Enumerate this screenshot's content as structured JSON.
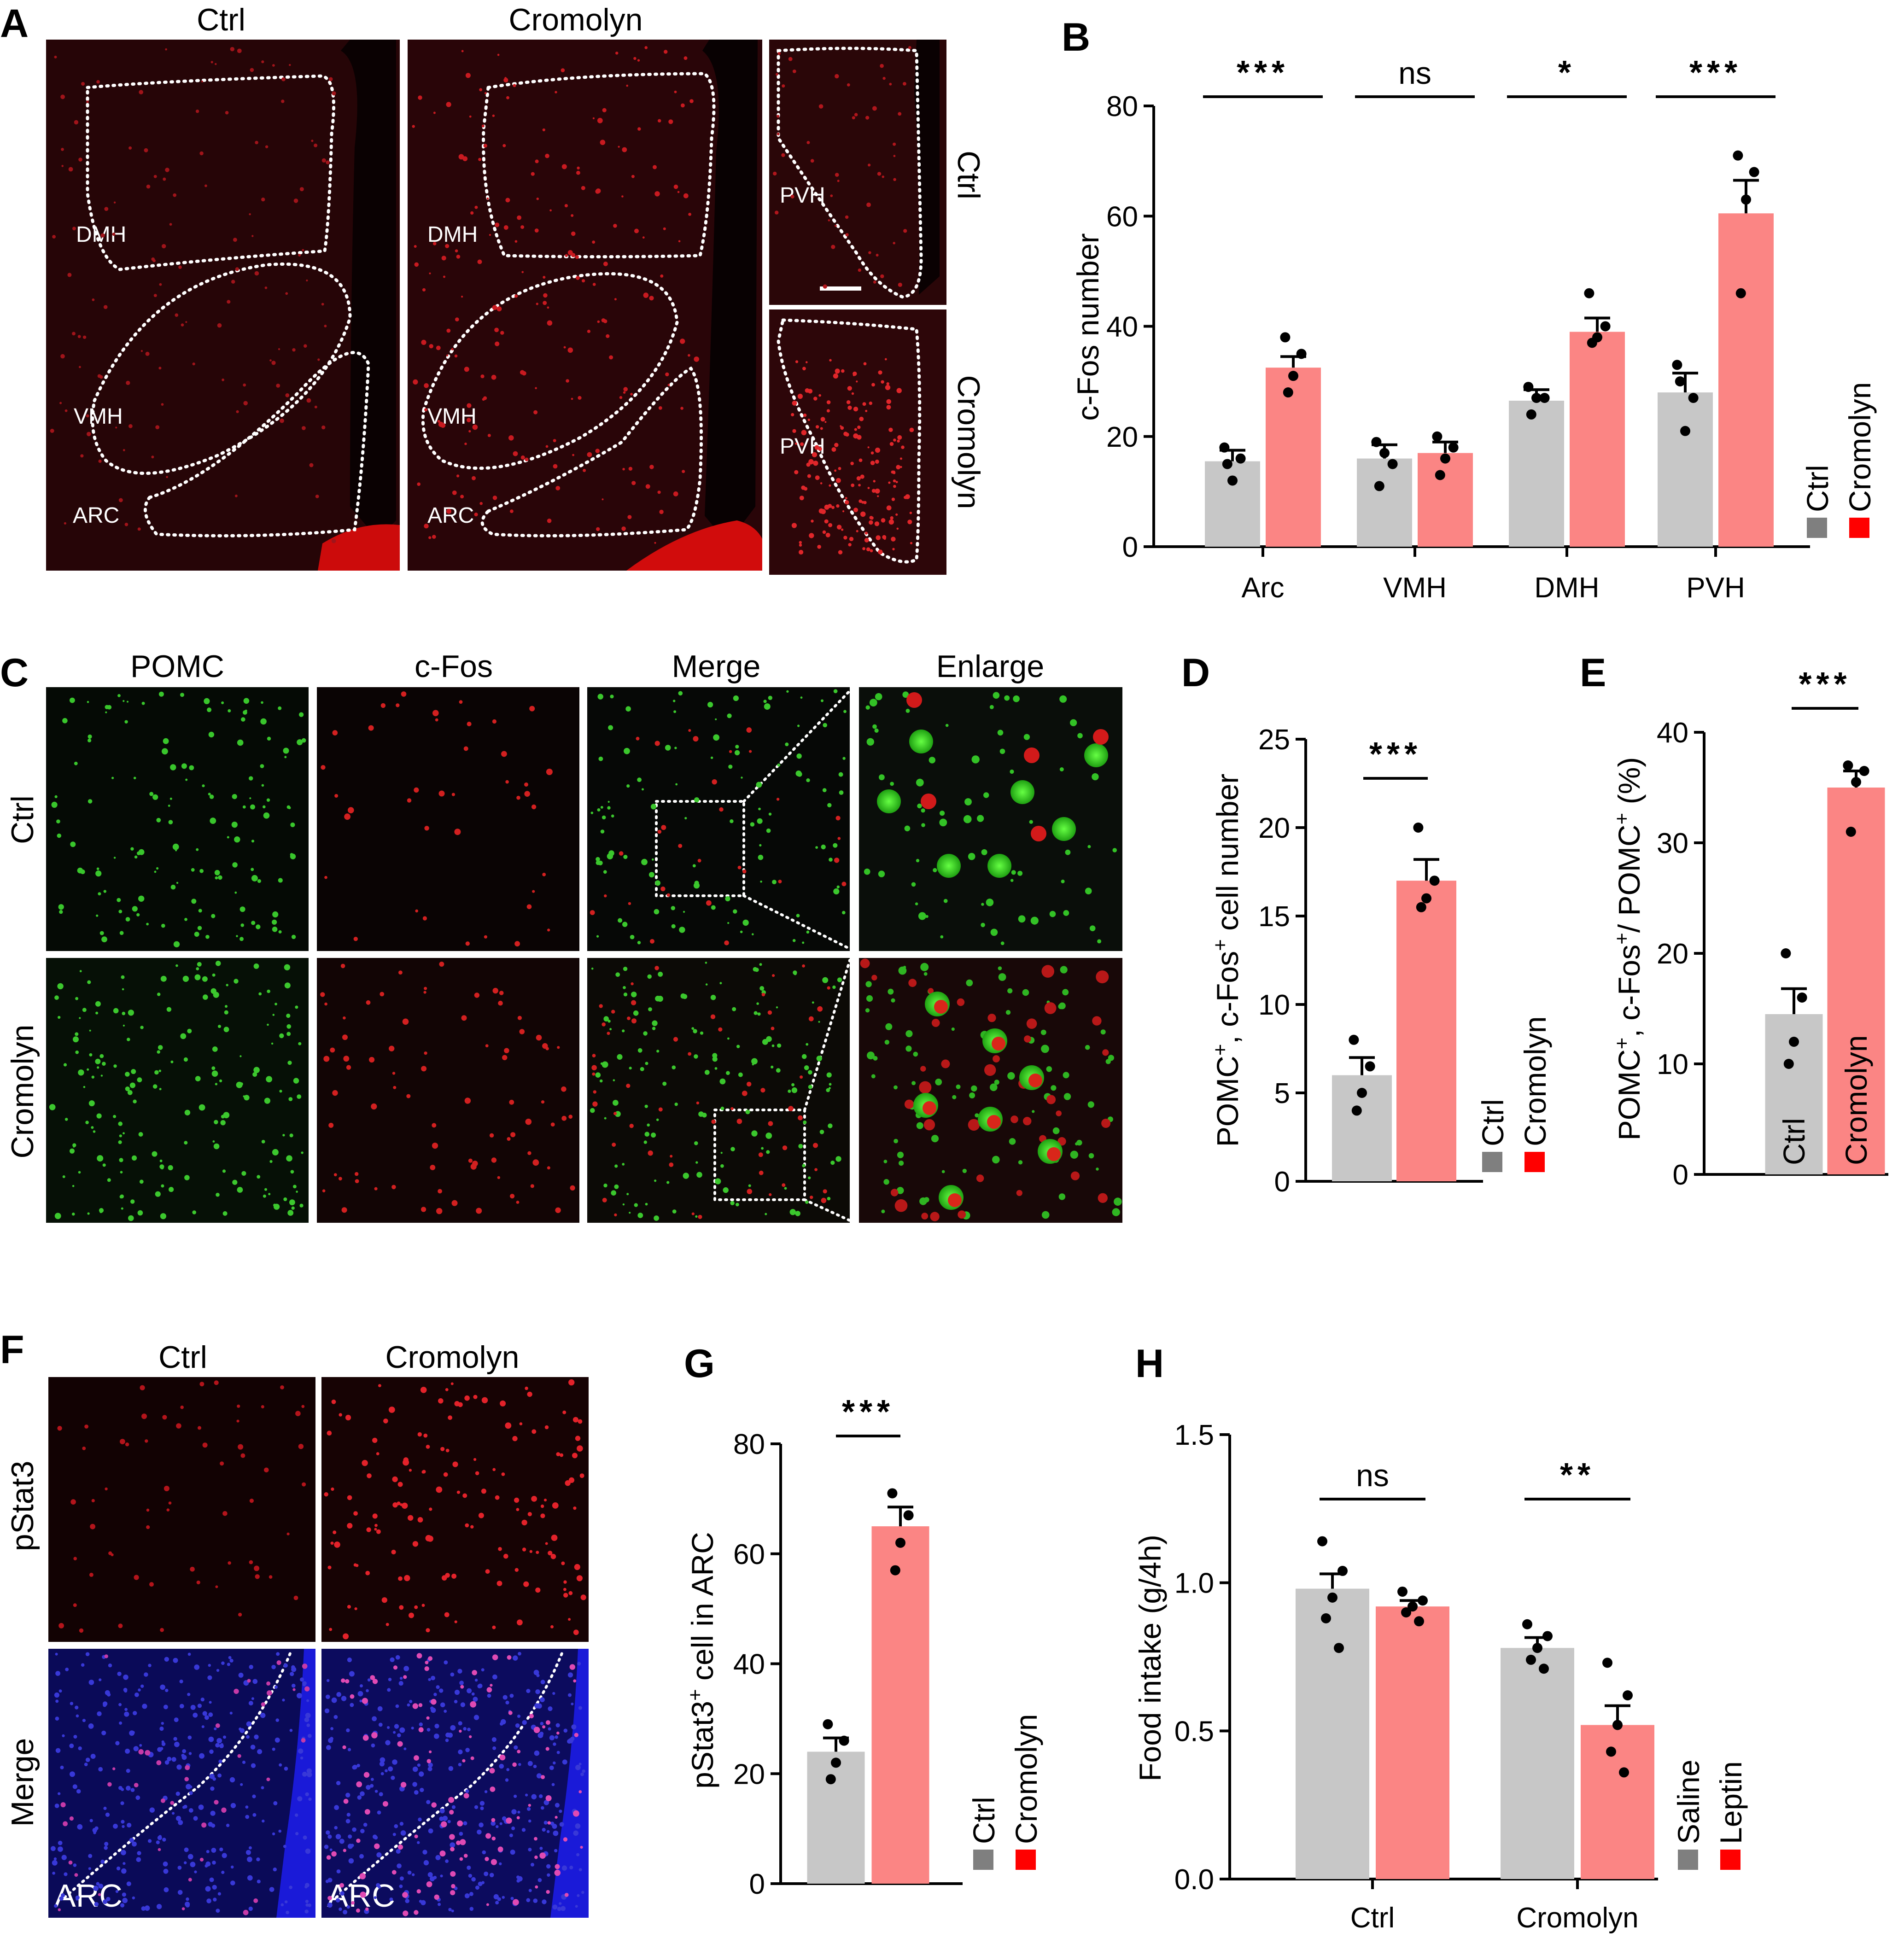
{
  "colors": {
    "control": "#c7c7c7",
    "treatment": "#fb8584",
    "legend_control": "#7f7f7f",
    "legend_treatment": "#ff0000"
  },
  "panelA": {
    "letter": "A",
    "col_ctrl": "Ctrl",
    "col_cromolyn": "Cromolyn",
    "row_ctrl": "Ctrl",
    "row_cromolyn": "Cromolyn",
    "regions": {
      "dmh": "DMH",
      "vmh": "VMH",
      "arc": "ARC",
      "pvh": "PVH"
    }
  },
  "panelC": {
    "letter": "C",
    "columns": [
      "POMC",
      "c-Fos",
      "Merge",
      "Enlarge"
    ],
    "rows": [
      "Ctrl",
      "Cromolyn"
    ]
  },
  "panelF": {
    "letter": "F",
    "columns": [
      "Ctrl",
      "Cromolyn"
    ],
    "rows": [
      "pStat3",
      "Merge"
    ],
    "arc_label": "ARC"
  },
  "chart_data": [
    {
      "panel": "B",
      "type": "bar",
      "ylabel": "c-Fos number",
      "ylim": [
        0,
        80
      ],
      "yticks": [
        0,
        20,
        40,
        60,
        80
      ],
      "categories": [
        "Arc",
        "VMH",
        "DMH",
        "PVH"
      ],
      "legend": [
        "Ctrl",
        "Cromolyn"
      ],
      "series": [
        {
          "name": "Ctrl",
          "values": [
            15.5,
            16,
            26.5,
            28
          ],
          "sem": [
            2,
            2.5,
            2,
            3.5
          ],
          "points": [
            [
              18,
              16,
              12,
              15
            ],
            [
              19,
              15,
              17,
              11
            ],
            [
              29,
              27,
              27,
              24
            ],
            [
              33,
              27,
              21,
              30
            ]
          ]
        },
        {
          "name": "Cromolyn",
          "values": [
            32.5,
            17,
            39,
            60.5
          ],
          "sem": [
            2,
            2,
            2.5,
            6
          ],
          "points": [
            [
              38,
              35,
              31,
              28
            ],
            [
              20,
              18,
              16,
              13
            ],
            [
              46,
              40,
              38,
              37
            ],
            [
              71,
              68,
              63,
              46
            ]
          ]
        }
      ],
      "significance": [
        "***",
        "ns",
        "*",
        "***"
      ]
    },
    {
      "panel": "D",
      "type": "bar",
      "ylabel": "POMC+, c-Fos+ cell number",
      "ylim": [
        0,
        25
      ],
      "yticks": [
        0,
        5,
        10,
        15,
        20,
        25
      ],
      "categories": [
        "Ctrl",
        "Cromolyn"
      ],
      "legend": [
        "Ctrl",
        "Cromolyn"
      ],
      "values": [
        6,
        17
      ],
      "sem": [
        1,
        1.2
      ],
      "points": [
        [
          8,
          6.5,
          5,
          4
        ],
        [
          20,
          17,
          16,
          15.5
        ]
      ],
      "significance": [
        "***"
      ]
    },
    {
      "panel": "E",
      "type": "bar",
      "ylabel": "POMC+, c-Fos+/ POMC+ (%)",
      "ylim": [
        0,
        40
      ],
      "yticks": [
        0,
        10,
        20,
        30,
        40
      ],
      "categories": [
        "Ctrl",
        "Cromolyn"
      ],
      "values": [
        14.5,
        35
      ],
      "sem": [
        2.3,
        1.5
      ],
      "points": [
        [
          20,
          16,
          12,
          10
        ],
        [
          37,
          36.5,
          35.5,
          31
        ]
      ],
      "significance": [
        "***"
      ]
    },
    {
      "panel": "G",
      "type": "bar",
      "ylabel": "pStat3+ cell in ARC",
      "ylim": [
        0,
        80
      ],
      "yticks": [
        0,
        20,
        40,
        60,
        80
      ],
      "categories": [
        "Ctrl",
        "Cromolyn"
      ],
      "legend": [
        "Ctrl",
        "Cromolyn"
      ],
      "values": [
        24,
        65
      ],
      "sem": [
        2.5,
        3.5
      ],
      "points": [
        [
          29,
          26,
          22,
          19
        ],
        [
          71,
          67,
          62,
          57
        ]
      ],
      "significance": [
        "***"
      ]
    },
    {
      "panel": "H",
      "type": "bar",
      "ylabel": "Food intake (g/4h)",
      "ylim": [
        0,
        1.5
      ],
      "yticks": [
        "0.0",
        "0.5",
        "1.0",
        "1.5"
      ],
      "categories": [
        "Ctrl",
        "Cromolyn"
      ],
      "legend": [
        "Saline",
        "Leptin"
      ],
      "series": [
        {
          "name": "Saline",
          "values": [
            0.98,
            0.78
          ],
          "sem": [
            0.05,
            0.035
          ],
          "points": [
            [
              1.14,
              1.04,
              0.95,
              0.88,
              0.78
            ],
            [
              0.86,
              0.82,
              0.78,
              0.74,
              0.71
            ]
          ]
        },
        {
          "name": "Leptin",
          "values": [
            0.92,
            0.52
          ],
          "sem": [
            0.02,
            0.065
          ],
          "points": [
            [
              0.97,
              0.94,
              0.92,
              0.9,
              0.87
            ],
            [
              0.73,
              0.62,
              0.52,
              0.43,
              0.36
            ]
          ]
        }
      ],
      "significance": [
        "ns",
        "**"
      ]
    }
  ],
  "panel_letters": {
    "B": "B",
    "D": "D",
    "E": "E",
    "G": "G",
    "H": "H"
  },
  "superscript_plus": "+"
}
